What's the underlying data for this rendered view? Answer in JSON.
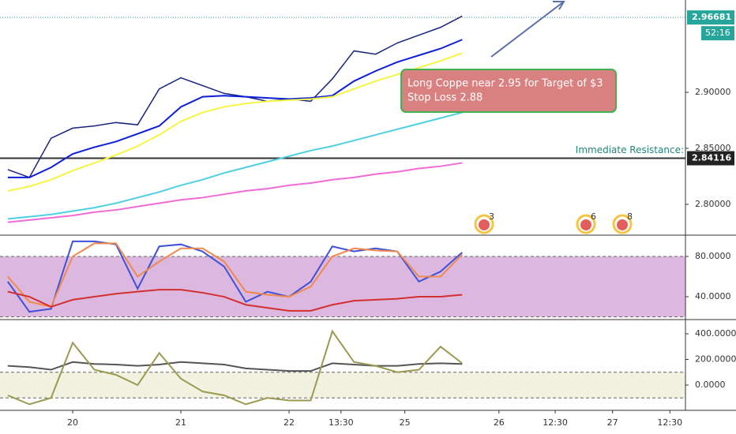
{
  "chart_data": [
    {
      "type": "line",
      "x": [
        -0.6,
        -0.4,
        -0.2,
        0,
        0.2,
        0.4,
        0.6,
        0.8,
        1.0,
        1.2,
        1.4,
        1.6,
        1.8,
        2.0,
        2.2,
        2.4,
        2.6,
        2.8,
        3.0,
        3.2,
        3.4,
        3.6
      ],
      "xlim": [
        -0.672,
        5.664
      ],
      "ylim": [
        2.7725,
        2.9824
      ],
      "yticks": [
        {
          "value": 2.8,
          "label": "2.80000"
        },
        {
          "value": 2.85,
          "label": "2.85000"
        },
        {
          "value": 2.9,
          "label": "2.90000"
        }
      ],
      "series": [
        {
          "color": "#1a237e",
          "values": [
            2.831,
            2.824,
            2.859,
            2.868,
            2.87,
            2.873,
            2.871,
            2.903,
            2.913,
            2.906,
            2.899,
            2.896,
            2.892,
            2.894,
            2.892,
            2.912,
            2.937,
            2.934,
            2.944,
            2.951,
            2.958,
            2.968
          ]
        },
        {
          "color": "#0d1fd6",
          "values": [
            2.824,
            2.824,
            2.833,
            2.845,
            2.851,
            2.856,
            2.863,
            2.87,
            2.887,
            2.896,
            2.897,
            2.896,
            2.895,
            2.894,
            2.895,
            2.897,
            2.91,
            2.919,
            2.927,
            2.933,
            2.939,
            2.947
          ]
        },
        {
          "color": "#f5f542",
          "values": [
            2.812,
            2.816,
            2.822,
            2.83,
            2.837,
            2.844,
            2.852,
            2.862,
            2.874,
            2.882,
            2.887,
            2.89,
            2.892,
            2.893,
            2.894,
            2.896,
            2.903,
            2.91,
            2.916,
            2.922,
            2.928,
            2.935
          ]
        },
        {
          "color": "#4dd0e1",
          "values": [
            2.787,
            2.789,
            2.791,
            2.794,
            2.797,
            2.801,
            2.806,
            2.811,
            2.817,
            2.822,
            2.828,
            2.833,
            2.838,
            2.843,
            2.848,
            2.852,
            2.857,
            2.862,
            2.867,
            2.872,
            2.877,
            2.882
          ]
        },
        {
          "color": "#f06bd6",
          "values": [
            2.784,
            2.786,
            2.788,
            2.79,
            2.793,
            2.795,
            2.798,
            2.801,
            2.804,
            2.806,
            2.809,
            2.812,
            2.814,
            2.817,
            2.819,
            2.822,
            2.824,
            2.827,
            2.829,
            2.832,
            2.834,
            2.837
          ]
        }
      ],
      "last_price": 2.96681,
      "countdown": "52:16",
      "resistance": 2.84116,
      "resistance_label": "Immediate Resistance:",
      "note": [
        "Long Coppe near 2.95 for Target of $3",
        "Stop Loss 2.88"
      ],
      "events": [
        "3",
        "6",
        "8"
      ]
    },
    {
      "type": "line",
      "x": [
        -0.6,
        -0.4,
        -0.2,
        0,
        0.2,
        0.4,
        0.6,
        0.8,
        1.0,
        1.2,
        1.4,
        1.6,
        1.8,
        2.0,
        2.2,
        2.4,
        2.6,
        2.8,
        3.0,
        3.2,
        3.4,
        3.6
      ],
      "xlim": [
        -0.672,
        5.664
      ],
      "ylim": [
        17.3,
        99.6
      ],
      "yticks": [
        {
          "value": 40,
          "label": "40.0000"
        },
        {
          "value": 80,
          "label": "80.0000"
        }
      ],
      "band": [
        20,
        80
      ],
      "band_color": "#dcb8e0",
      "series": [
        {
          "color": "#3f51d8",
          "values": [
            55,
            25,
            28,
            95,
            95,
            92,
            48,
            90,
            92,
            85,
            70,
            35,
            45,
            40,
            55,
            90,
            85,
            88,
            85,
            55,
            65,
            84
          ]
        },
        {
          "color": "#f08a4b",
          "values": [
            60,
            35,
            30,
            80,
            93,
            93,
            60,
            75,
            88,
            88,
            75,
            45,
            42,
            40,
            50,
            80,
            88,
            86,
            85,
            60,
            60,
            82
          ]
        },
        {
          "color": "#d32f2f",
          "values": [
            45,
            40,
            30,
            37,
            40,
            43,
            45,
            47,
            47,
            44,
            40,
            32,
            29,
            26,
            26,
            32,
            36,
            37,
            38,
            40,
            40,
            42
          ]
        }
      ]
    },
    {
      "type": "line",
      "x": [
        -0.6,
        -0.4,
        -0.2,
        0,
        0.2,
        0.4,
        0.6,
        0.8,
        1.0,
        1.2,
        1.4,
        1.6,
        1.8,
        2.0,
        2.2,
        2.4,
        2.6,
        2.8,
        3.0,
        3.2,
        3.4,
        3.6
      ],
      "xlim": [
        -0.672,
        5.664
      ],
      "ylim": [
        -197,
        511
      ],
      "yticks": [
        {
          "value": 0,
          "label": "0.0000"
        },
        {
          "value": 200,
          "label": "200.0000"
        },
        {
          "value": 400,
          "label": "400.0000"
        }
      ],
      "band": [
        -100,
        100
      ],
      "band_color": "#f1f2e0",
      "xticks": [
        {
          "value": 0,
          "label": "20"
        },
        {
          "value": 1,
          "label": "21"
        },
        {
          "value": 2,
          "label": "22"
        },
        {
          "value": 2.48,
          "label": "13:30"
        },
        {
          "value": 3.07,
          "label": "25"
        },
        {
          "value": 3.94,
          "label": "26"
        },
        {
          "value": 4.46,
          "label": "12:30"
        },
        {
          "value": 4.99,
          "label": "27"
        },
        {
          "value": 5.52,
          "label": "12:30"
        }
      ],
      "series": [
        {
          "color": "#555555",
          "values": [
            150,
            140,
            120,
            180,
            165,
            160,
            150,
            160,
            180,
            170,
            160,
            130,
            120,
            110,
            110,
            170,
            160,
            150,
            150,
            165,
            170,
            165
          ]
        },
        {
          "color": "#9a9a50",
          "values": [
            -80,
            -150,
            -100,
            330,
            120,
            80,
            0,
            250,
            50,
            -50,
            -80,
            -150,
            -100,
            -120,
            -120,
            420,
            180,
            150,
            100,
            120,
            300,
            170
          ]
        }
      ]
    }
  ]
}
